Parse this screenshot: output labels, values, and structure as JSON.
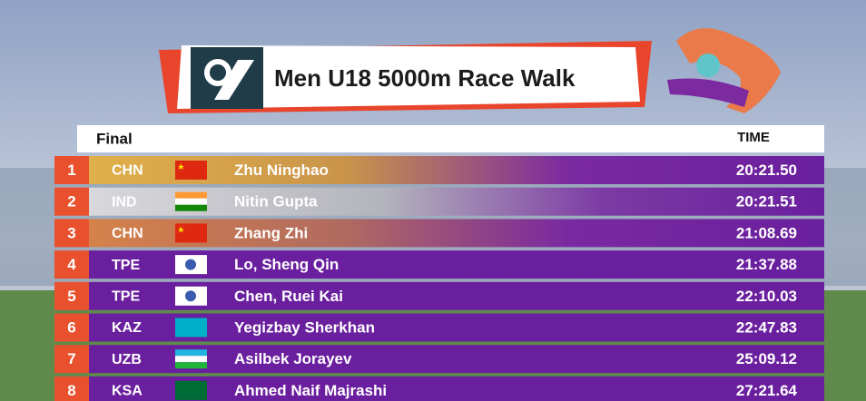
{
  "header": {
    "title": "Men U18 5000m Race Walk"
  },
  "table": {
    "round": "Final",
    "time_header": "TIME",
    "rows": [
      {
        "rank": "1",
        "country": "CHN",
        "name": "Zhu Ninghao",
        "time": "20:21.50"
      },
      {
        "rank": "2",
        "country": "IND",
        "name": "Nitin Gupta",
        "time": "20:21.51"
      },
      {
        "rank": "3",
        "country": "CHN",
        "name": "Zhang Zhi",
        "time": "21:08.69"
      },
      {
        "rank": "4",
        "country": "TPE",
        "name": "Lo, Sheng Qin",
        "time": "21:37.88"
      },
      {
        "rank": "5",
        "country": "TPE",
        "name": "Chen, Ruei Kai",
        "time": "22:10.03"
      },
      {
        "rank": "6",
        "country": "KAZ",
        "name": "Yegizbay Sherkhan",
        "time": "22:47.83"
      },
      {
        "rank": "7",
        "country": "UZB",
        "name": "Asilbek Jorayev",
        "time": "25:09.12"
      },
      {
        "rank": "8",
        "country": "KSA",
        "name": "Ahmed Naif Majrashi",
        "time": "27:21.64"
      }
    ]
  }
}
